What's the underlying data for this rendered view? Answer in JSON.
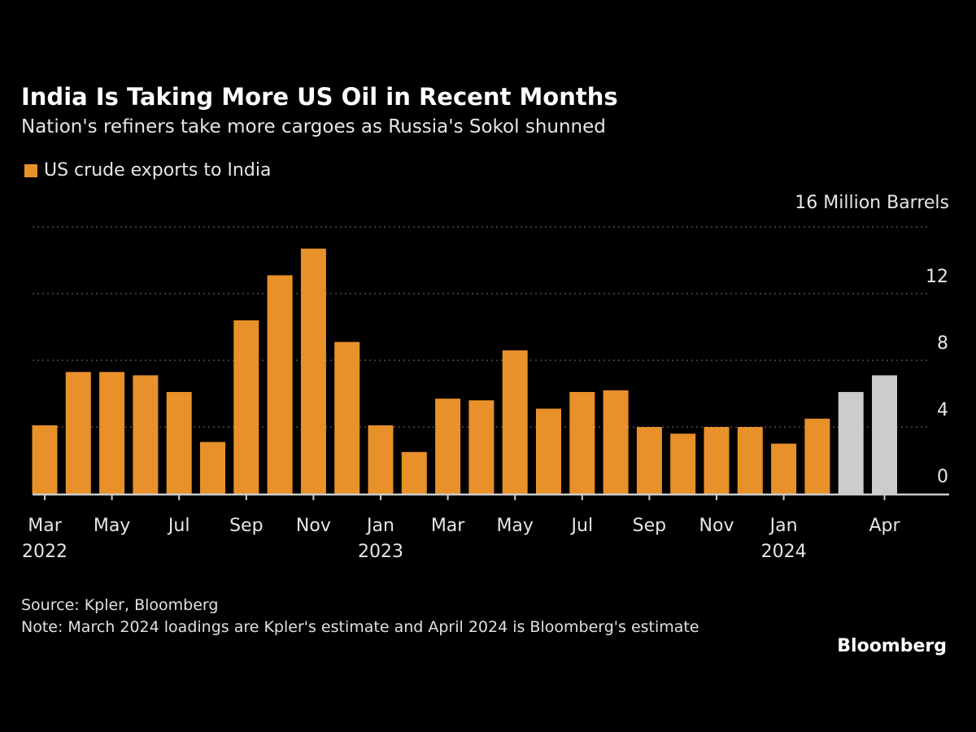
{
  "title": "India Is Taking More US Oil in Recent Months",
  "subtitle": "Nation's refiners take more cargoes as Russia's Sokol shunned",
  "source": "Source: Kpler, Bloomberg",
  "note": "Note: March 2024 loadings are Kpler's estimate and April 2024 is Bloomberg's estimate",
  "logo": "Bloomberg",
  "colors": {
    "actual": "#e8912a",
    "estimate": "#cccccc",
    "background": "#000000"
  },
  "chart_data": {
    "type": "bar",
    "unit_label": "16 Million Barrels",
    "legend": [
      {
        "name": "US crude exports to India"
      }
    ],
    "ylim": [
      0,
      16
    ],
    "yticks": [
      0,
      4,
      8,
      12,
      16
    ],
    "grid": true,
    "categories": [
      "Mar 2022",
      "Apr 2022",
      "May 2022",
      "Jun 2022",
      "Jul 2022",
      "Aug 2022",
      "Sep 2022",
      "Oct 2022",
      "Nov 2022",
      "Dec 2022",
      "Jan 2023",
      "Feb 2023",
      "Mar 2023",
      "Apr 2023",
      "May 2023",
      "Jun 2023",
      "Jul 2023",
      "Aug 2023",
      "Sep 2023",
      "Oct 2023",
      "Nov 2023",
      "Dec 2023",
      "Jan 2024",
      "Feb 2024",
      "Mar 2024",
      "Apr 2024"
    ],
    "series": [
      {
        "name": "US crude exports to India",
        "values": [
          4.1,
          7.3,
          7.3,
          7.1,
          6.1,
          3.1,
          10.4,
          13.1,
          14.7,
          9.1,
          4.1,
          2.5,
          5.7,
          5.6,
          8.6,
          5.1,
          6.1,
          6.2,
          4.0,
          3.6,
          4.0,
          4.0,
          3.0,
          4.5,
          6.1,
          7.1
        ]
      }
    ],
    "estimated": [
      false,
      false,
      false,
      false,
      false,
      false,
      false,
      false,
      false,
      false,
      false,
      false,
      false,
      false,
      false,
      false,
      false,
      false,
      false,
      false,
      false,
      false,
      false,
      false,
      true,
      true
    ],
    "xtick_labels": [
      {
        "index": 0,
        "month": "Mar",
        "year": "2022"
      },
      {
        "index": 2,
        "month": "May",
        "year": ""
      },
      {
        "index": 4,
        "month": "Jul",
        "year": ""
      },
      {
        "index": 6,
        "month": "Sep",
        "year": ""
      },
      {
        "index": 8,
        "month": "Nov",
        "year": ""
      },
      {
        "index": 10,
        "month": "Jan",
        "year": "2023"
      },
      {
        "index": 12,
        "month": "Mar",
        "year": ""
      },
      {
        "index": 14,
        "month": "May",
        "year": ""
      },
      {
        "index": 16,
        "month": "Jul",
        "year": ""
      },
      {
        "index": 18,
        "month": "Sep",
        "year": ""
      },
      {
        "index": 20,
        "month": "Nov",
        "year": ""
      },
      {
        "index": 22,
        "month": "Jan",
        "year": "2024"
      },
      {
        "index": 25,
        "month": "Apr",
        "year": ""
      }
    ]
  }
}
